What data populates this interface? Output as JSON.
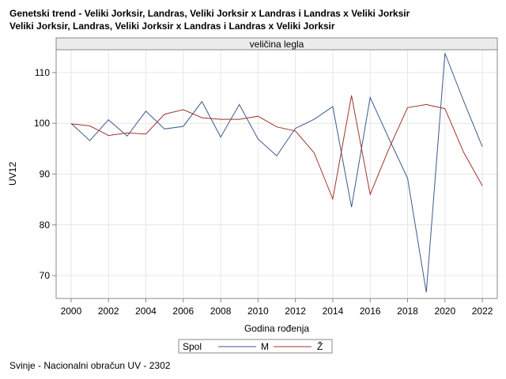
{
  "title_line1": "Genetski trend - Veliki Jorksir, Landras, Veliki Jorksir x Landras i Landras x Veliki Jorksir",
  "title_line2": "Veliki Jorksir, Landras, Veliki Jorksir x Landras i Landras x Veliki Jorksir",
  "footnote": "Svinje - Nacionalni obračun UV - 2302",
  "chart_data": {
    "type": "line",
    "panel_header": "veličina legla",
    "xlabel": "Godina rođenja",
    "ylabel": "UV12",
    "x": [
      2000,
      2001,
      2002,
      2003,
      2004,
      2005,
      2006,
      2007,
      2008,
      2009,
      2010,
      2011,
      2012,
      2013,
      2014,
      2015,
      2016,
      2017,
      2018,
      2019,
      2020,
      2021,
      2022
    ],
    "xlim": [
      1999.2,
      2022.8
    ],
    "ylim": [
      65.5,
      114.5
    ],
    "xticks": [
      "2000",
      "2002",
      "2004",
      "2006",
      "2008",
      "2010",
      "2012",
      "2014",
      "2016",
      "2018",
      "2020",
      "2022"
    ],
    "yticks": [
      "70",
      "80",
      "90",
      "100",
      "110"
    ],
    "grid": true,
    "legend_title": "Spol",
    "legend_position": "bottom",
    "series": [
      {
        "name": "M",
        "color": "#3c5a8c",
        "values": [
          100.0,
          96.6,
          100.7,
          97.5,
          102.4,
          98.9,
          99.4,
          104.3,
          97.3,
          103.7,
          96.9,
          93.6,
          99.0,
          100.8,
          103.3,
          83.5,
          105.1,
          97.0,
          89.2,
          66.7,
          113.8,
          104.4,
          95.4
        ]
      },
      {
        "name": "Ž",
        "color": "#a0342c",
        "values": [
          99.9,
          99.5,
          97.6,
          98.1,
          97.9,
          101.8,
          102.7,
          101.1,
          100.8,
          100.8,
          101.4,
          99.3,
          98.5,
          94.2,
          85.1,
          105.5,
          86.0,
          95.0,
          103.1,
          103.7,
          102.9,
          94.3,
          87.7
        ]
      }
    ]
  }
}
